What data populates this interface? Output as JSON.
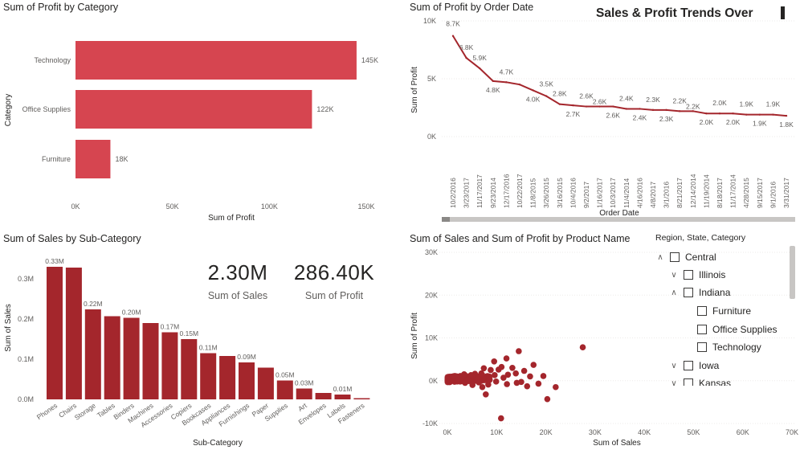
{
  "colors": {
    "bar_red": "#D64550",
    "dark_red": "#A4262C",
    "axis_text": "#605e5c",
    "title_text": "#252423"
  },
  "trend_header": "Sales & Profit Trends Over",
  "kpis": {
    "sales": {
      "value": "2.30M",
      "label": "Sum of Sales"
    },
    "profit": {
      "value": "286.40K",
      "label": "Sum of Profit"
    }
  },
  "slicer": {
    "title": "Region, State, Category",
    "items": [
      {
        "label": "Central",
        "level": 0,
        "expander": "chevron-up-icon"
      },
      {
        "label": "Illinois",
        "level": 1,
        "expander": "chevron-down-icon"
      },
      {
        "label": "Indiana",
        "level": 1,
        "expander": "chevron-up-icon"
      },
      {
        "label": "Furniture",
        "level": 2,
        "expander": ""
      },
      {
        "label": "Office Supplies",
        "level": 2,
        "expander": ""
      },
      {
        "label": "Technology",
        "level": 2,
        "expander": ""
      },
      {
        "label": "Iowa",
        "level": 1,
        "expander": "chevron-down-icon"
      },
      {
        "label": "Kansas",
        "level": 1,
        "expander": "chevron-down-icon"
      }
    ]
  },
  "chart_data": [
    {
      "id": "profit_by_category",
      "type": "bar",
      "orientation": "horizontal",
      "title": "Sum of Profit by Category",
      "xlabel": "Sum of Profit",
      "ylabel": "Category",
      "categories": [
        "Technology",
        "Office Supplies",
        "Furniture"
      ],
      "values": [
        145000,
        122000,
        18000
      ],
      "data_labels": [
        "145K",
        "122K",
        "18K"
      ],
      "xlim": [
        0,
        150000
      ],
      "xticks": [
        0,
        50000,
        100000,
        150000
      ],
      "xtick_labels": [
        "0K",
        "50K",
        "100K",
        "150K"
      ],
      "color": "#D64550"
    },
    {
      "id": "profit_by_order_date",
      "type": "line",
      "title": "Sum of Profit by Order Date",
      "xlabel": "Order Date",
      "ylabel": "Sum of Profit",
      "ylim": [
        0,
        10000
      ],
      "yticks": [
        0,
        5000,
        10000
      ],
      "ytick_labels": [
        "0K",
        "5K",
        "10K"
      ],
      "x": [
        "10/2/2016",
        "3/23/2017",
        "11/17/2017",
        "9/23/2014",
        "12/17/2016",
        "10/22/2017",
        "11/8/2015",
        "3/26/2015",
        "3/16/2015",
        "10/4/2016",
        "9/2/2017",
        "1/16/2017",
        "10/3/2017",
        "11/4/2014",
        "4/16/2016",
        "4/8/2017",
        "3/1/2016",
        "8/21/2017",
        "12/14/2014",
        "11/19/2014",
        "8/18/2017",
        "11/17/2014",
        "4/28/2015",
        "9/15/2017",
        "9/1/2016",
        "3/31/2017"
      ],
      "values": [
        8700,
        6800,
        5900,
        4800,
        4700,
        4500,
        4000,
        3500,
        2800,
        2700,
        2600,
        2600,
        2600,
        2400,
        2400,
        2300,
        2300,
        2200,
        2200,
        2000,
        2000,
        2000,
        1900,
        1900,
        1900,
        1800
      ],
      "data_labels": [
        "8.7K",
        "6.8K",
        "5.9K",
        "4.8K",
        "4.7K",
        "",
        "4.0K",
        "3.5K",
        "2.8K",
        "2.7K",
        "2.6K",
        "2.6K",
        "2.6K",
        "2.4K",
        "2.4K",
        "2.3K",
        "2.3K",
        "2.2K",
        "2.2K",
        "2.0K",
        "2.0K",
        "2.0K",
        "1.9K",
        "1.9K",
        "1.9K",
        "1.8K"
      ],
      "color": "#A4262C"
    },
    {
      "id": "sales_by_subcategory",
      "type": "bar",
      "title": "Sum of Sales by Sub-Category",
      "xlabel": "Sub-Category",
      "ylabel": "Sum of Sales",
      "categories": [
        "Phones",
        "Chairs",
        "Storage",
        "Tables",
        "Binders",
        "Machines",
        "Accessories",
        "Copiers",
        "Bookcases",
        "Appliances",
        "Furnishings",
        "Paper",
        "Supplies",
        "Art",
        "Envelopes",
        "Labels",
        "Fasteners"
      ],
      "values": [
        330000,
        328000,
        224000,
        207000,
        203000,
        190000,
        167000,
        150000,
        115000,
        108000,
        92000,
        79000,
        47000,
        27000,
        16000,
        12000,
        3000
      ],
      "data_labels": [
        "0.33M",
        "",
        "0.22M",
        "",
        "0.20M",
        "",
        "0.17M",
        "0.15M",
        "0.11M",
        "",
        "0.09M",
        "",
        "0.05M",
        "0.03M",
        "",
        "0.01M",
        ""
      ],
      "ylim": [
        0,
        350000
      ],
      "yticks": [
        0,
        100000,
        200000,
        300000
      ],
      "ytick_labels": [
        "0.0M",
        "0.1M",
        "0.2M",
        "0.3M"
      ],
      "color": "#A4262C"
    },
    {
      "id": "sales_vs_profit_by_product",
      "type": "scatter",
      "title": "Sum of Sales and Sum of Profit by Product Name",
      "xlabel": "Sum of Sales",
      "ylabel": "Sum of Profit",
      "xlim": [
        0,
        70000
      ],
      "ylim": [
        -10000,
        30000
      ],
      "xticks": [
        0,
        10000,
        20000,
        30000,
        40000,
        50000,
        60000,
        70000
      ],
      "xtick_labels": [
        "0K",
        "10K",
        "20K",
        "30K",
        "40K",
        "50K",
        "60K",
        "70K"
      ],
      "yticks": [
        -10000,
        0,
        10000,
        20000,
        30000
      ],
      "ytick_labels": [
        "-10K",
        "0K",
        "10K",
        "20K",
        "30K"
      ],
      "points": [
        [
          27500,
          7800
        ],
        [
          14500,
          6900
        ],
        [
          12000,
          5200
        ],
        [
          11000,
          3200
        ],
        [
          9500,
          4500
        ],
        [
          8800,
          2500
        ],
        [
          17500,
          3700
        ],
        [
          16800,
          1000
        ],
        [
          15000,
          -300
        ],
        [
          16200,
          -1300
        ],
        [
          19500,
          1100
        ],
        [
          22000,
          -1500
        ],
        [
          18500,
          -700
        ],
        [
          20300,
          -4300
        ],
        [
          10900,
          -8800
        ],
        [
          7800,
          -3200
        ],
        [
          13200,
          3000
        ],
        [
          12300,
          1400
        ],
        [
          7400,
          2900
        ],
        [
          6900,
          1700
        ],
        [
          5600,
          1600
        ],
        [
          12100,
          -800
        ],
        [
          4800,
          1300
        ],
        [
          2900,
          700
        ],
        [
          3600,
          -500
        ],
        [
          10400,
          2600
        ],
        [
          9600,
          1300
        ],
        [
          6200,
          600
        ],
        [
          4200,
          100
        ],
        [
          5100,
          -1000
        ],
        [
          7100,
          -1500
        ],
        [
          8600,
          200
        ],
        [
          11400,
          700
        ],
        [
          13900,
          1700
        ],
        [
          15600,
          2300
        ],
        [
          14100,
          -500
        ],
        [
          3400,
          1500
        ],
        [
          2200,
          400
        ],
        [
          1500,
          1100
        ],
        [
          6400,
          -400
        ],
        [
          8300,
          -900
        ],
        [
          9900,
          -200
        ]
      ],
      "dense_cluster": {
        "x_range": [
          0,
          9000
        ],
        "y_range": [
          -900,
          2400
        ],
        "count": 260
      },
      "color": "#A4262C"
    }
  ]
}
